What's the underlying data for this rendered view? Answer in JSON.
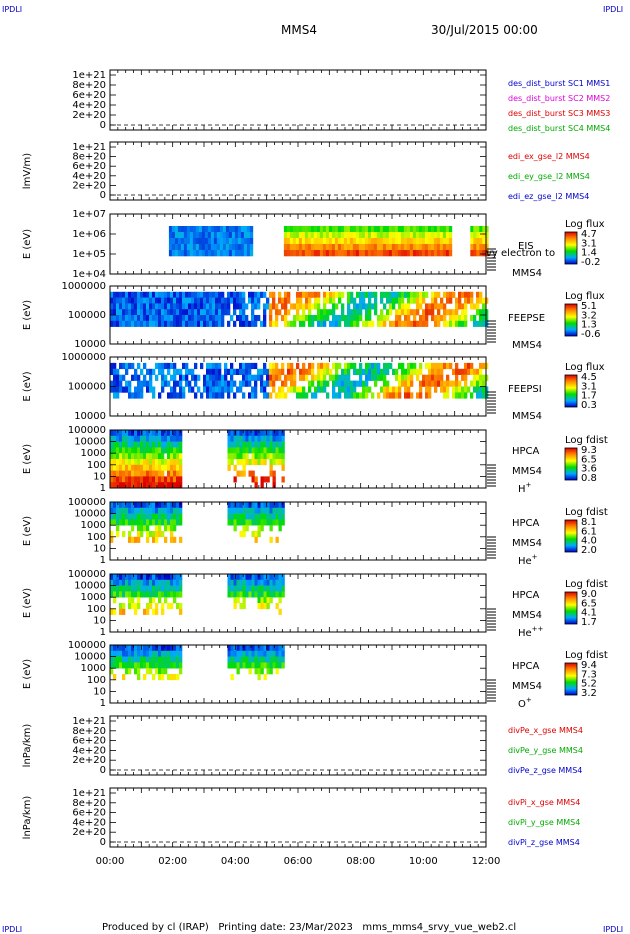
{
  "header": {
    "corner_tl": "IPDLI",
    "corner_tr": "IPDLI",
    "corner_bl": "IPDLI",
    "corner_br": "IPDLI",
    "title": "MMS4",
    "date": "30/Jul/2015 00:00"
  },
  "footer": {
    "text": "Produced by cl (IRAP)   Printing date: 23/Mar/2023   mms_mms4_srvy_vue_web2.cl"
  },
  "colors": {
    "sc1": "#0000cc",
    "sc2": "#dd00dd",
    "sc3": "#dd0000",
    "sc4": "#00aa00",
    "x_comp": "#dd0000",
    "y_comp": "#00aa00",
    "z_comp": "#0000cc"
  },
  "chart_data": [
    {
      "type": "line",
      "id": "des_dist",
      "ylabel": "",
      "yticks": [
        "1e+21",
        "8e+20",
        "6e+20",
        "4e+20",
        "2e+20",
        "0"
      ],
      "legend": [
        {
          "name": "des_dist_burst SC1 MMS1",
          "color": "#0000cc"
        },
        {
          "name": "des_dist_burst SC2 MMS2",
          "color": "#dd00dd"
        },
        {
          "name": "des_dist_burst SC3 MMS3",
          "color": "#dd0000"
        },
        {
          "name": "des_dist_burst SC4 MMS4",
          "color": "#00aa00"
        }
      ],
      "series": []
    },
    {
      "type": "line",
      "id": "edi",
      "ylabel": "lmV/m)",
      "yticks": [
        "1e+21",
        "8e+20",
        "6e+20",
        "4e+20",
        "2e+20",
        "0"
      ],
      "legend": [
        {
          "name": "edi_ex_gse_l2 MMS4",
          "color": "#dd0000"
        },
        {
          "name": "edi_ey_gse_l2 MMS4",
          "color": "#00aa00"
        },
        {
          "name": "edi_ez_gse_l2 MMS4",
          "color": "#0000cc"
        }
      ],
      "series": []
    },
    {
      "type": "heatmap",
      "id": "eis",
      "ylabel": "E (eV)",
      "yticks": [
        "1e+07",
        "1e+06",
        "1e+05",
        "1e+04"
      ],
      "side_labels": [
        "EIS",
        "MMS4"
      ],
      "overlay_text": "vy electron to",
      "colorbar": {
        "title": "Log flux",
        "ticks": [
          "4.7",
          "3.1",
          "1.4",
          "-0.2"
        ]
      },
      "intervals_hours": [
        [
          1.88,
          4.55
        ],
        [
          5.55,
          10.9
        ],
        [
          11.5,
          12.0
        ]
      ]
    },
    {
      "type": "heatmap",
      "id": "feepse",
      "ylabel": "E (eV)",
      "yticks": [
        "1000000",
        "100000",
        "10000"
      ],
      "side_labels": [
        "FEEPSE",
        "MMS4"
      ],
      "colorbar": {
        "title": "Log flux",
        "ticks": [
          "5.1",
          "3.2",
          "1.3",
          "-0.6"
        ]
      },
      "intervals_hours": [
        [
          0.0,
          12.0
        ]
      ]
    },
    {
      "type": "heatmap",
      "id": "feepsi",
      "ylabel": "E (eV)",
      "yticks": [
        "1000000",
        "100000",
        "10000"
      ],
      "side_labels": [
        "FEEPSI",
        "MMS4"
      ],
      "colorbar": {
        "title": "Log flux",
        "ticks": [
          "4.5",
          "3.1",
          "1.7",
          "0.3"
        ]
      },
      "intervals_hours": [
        [
          0.0,
          12.0
        ]
      ]
    },
    {
      "type": "heatmap",
      "id": "hpca_h",
      "ylabel": "E (eV)",
      "yticks": [
        "100000",
        "10000",
        "1000",
        "100",
        "10",
        "1"
      ],
      "side_labels": [
        "HPCA",
        "MMS4"
      ],
      "species": "H",
      "charge": "+",
      "colorbar": {
        "title": "Log fdist",
        "ticks": [
          "9.3",
          "6.5",
          "3.6",
          "0.8"
        ]
      },
      "intervals_hours": [
        [
          0.0,
          2.25
        ],
        [
          3.75,
          5.5
        ]
      ]
    },
    {
      "type": "heatmap",
      "id": "hpca_he",
      "ylabel": "E (eV)",
      "yticks": [
        "100000",
        "10000",
        "1000",
        "100",
        "10",
        "1"
      ],
      "side_labels": [
        "HPCA",
        "MMS4"
      ],
      "species": "He",
      "charge": "+",
      "colorbar": {
        "title": "Log fdist",
        "ticks": [
          "8.1",
          "6.1",
          "4.0",
          "2.0"
        ]
      },
      "intervals_hours": [
        [
          0.0,
          2.25
        ],
        [
          3.75,
          5.5
        ]
      ]
    },
    {
      "type": "heatmap",
      "id": "hpca_hepp",
      "ylabel": "E (eV)",
      "yticks": [
        "100000",
        "10000",
        "1000",
        "100",
        "10",
        "1"
      ],
      "side_labels": [
        "HPCA",
        "MMS4"
      ],
      "species": "He",
      "charge": "++",
      "colorbar": {
        "title": "Log fdist",
        "ticks": [
          "9.0",
          "6.5",
          "4.1",
          "1.7"
        ]
      },
      "intervals_hours": [
        [
          0.0,
          2.25
        ],
        [
          3.75,
          5.5
        ]
      ]
    },
    {
      "type": "heatmap",
      "id": "hpca_o",
      "ylabel": "E (eV)",
      "yticks": [
        "100000",
        "10000",
        "1000",
        "100",
        "10",
        "1"
      ],
      "side_labels": [
        "HPCA",
        "MMS4"
      ],
      "species": "O",
      "charge": "+",
      "colorbar": {
        "title": "Log fdist",
        "ticks": [
          "9.4",
          "7.3",
          "5.2",
          "3.2"
        ]
      },
      "intervals_hours": [
        [
          0.0,
          2.25
        ],
        [
          3.75,
          5.5
        ]
      ]
    },
    {
      "type": "line",
      "id": "divpe",
      "ylabel": "lnPa/km)",
      "yticks": [
        "1e+21",
        "8e+20",
        "6e+20",
        "4e+20",
        "2e+20",
        "0"
      ],
      "legend": [
        {
          "name": "divPe_x_gse MMS4",
          "color": "#dd0000"
        },
        {
          "name": "divPe_y_gse MMS4",
          "color": "#00aa00"
        },
        {
          "name": "divPe_z_gse MMS4",
          "color": "#0000cc"
        }
      ],
      "series": []
    },
    {
      "type": "line",
      "id": "divpi",
      "ylabel": "lnPa/km)",
      "yticks": [
        "1e+21",
        "8e+20",
        "6e+20",
        "4e+20",
        "2e+20",
        "0"
      ],
      "legend": [
        {
          "name": "divPi_x_gse MMS4",
          "color": "#dd0000"
        },
        {
          "name": "divPi_y_gse MMS4",
          "color": "#00aa00"
        },
        {
          "name": "divPi_z_gse MMS4",
          "color": "#0000cc"
        }
      ],
      "series": []
    }
  ],
  "xaxis": {
    "ticks": [
      "00:00",
      "02:00",
      "04:00",
      "06:00",
      "08:00",
      "10:00",
      "12:00"
    ],
    "range_hours": [
      0,
      12
    ]
  }
}
